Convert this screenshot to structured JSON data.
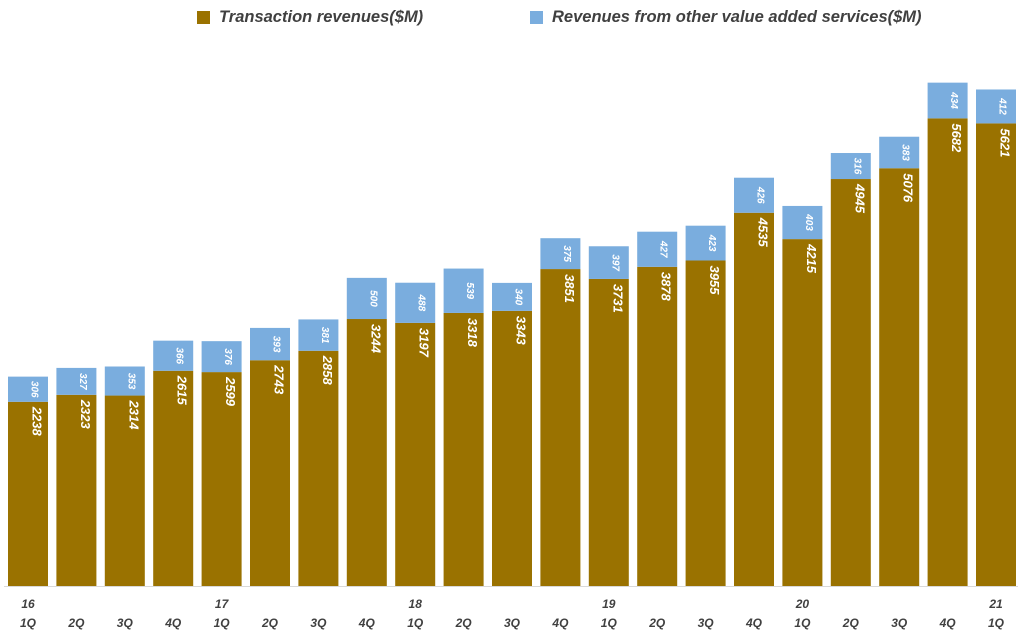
{
  "chart_data": {
    "type": "bar",
    "stacked": true,
    "title": "",
    "xlabel": "",
    "ylabel": "",
    "ylim": [
      0,
      6500
    ],
    "grid": false,
    "legend_position": "top-center",
    "colors": {
      "transaction": "#9a7200",
      "other": "#7aadde",
      "label_text": "#ffffff",
      "axis_text": "#404040",
      "baseline": "#d9d9d9"
    },
    "categories": [
      "16 1Q",
      "2Q",
      "3Q",
      "4Q",
      "17 1Q",
      "2Q",
      "3Q",
      "4Q",
      "18 1Q",
      "2Q",
      "3Q",
      "4Q",
      "19 1Q",
      "2Q",
      "3Q",
      "4Q",
      "20 1Q",
      "2Q",
      "3Q",
      "4Q",
      "21 1Q"
    ],
    "tick_quarters": [
      "1Q",
      "2Q",
      "3Q",
      "4Q",
      "1Q",
      "2Q",
      "3Q",
      "4Q",
      "1Q",
      "2Q",
      "3Q",
      "4Q",
      "1Q",
      "2Q",
      "3Q",
      "4Q",
      "1Q",
      "2Q",
      "3Q",
      "4Q",
      "1Q"
    ],
    "tick_years": [
      "16",
      "",
      "",
      "",
      "17",
      "",
      "",
      "",
      "18",
      "",
      "",
      "",
      "19",
      "",
      "",
      "",
      "20",
      "",
      "",
      "",
      "21"
    ],
    "series": [
      {
        "name": "Transaction revenues($M)",
        "key": "transaction",
        "values": [
          2238,
          2323,
          2314,
          2615,
          2599,
          2743,
          2858,
          3244,
          3197,
          3318,
          3343,
          3851,
          3731,
          3878,
          3955,
          4535,
          4215,
          4945,
          5076,
          5682,
          5621
        ]
      },
      {
        "name": "Revenues from other value added services($M)",
        "key": "other",
        "values": [
          306,
          327,
          353,
          366,
          376,
          393,
          381,
          500,
          488,
          539,
          340,
          375,
          397,
          427,
          423,
          426,
          403,
          316,
          383,
          434,
          412
        ]
      }
    ]
  }
}
